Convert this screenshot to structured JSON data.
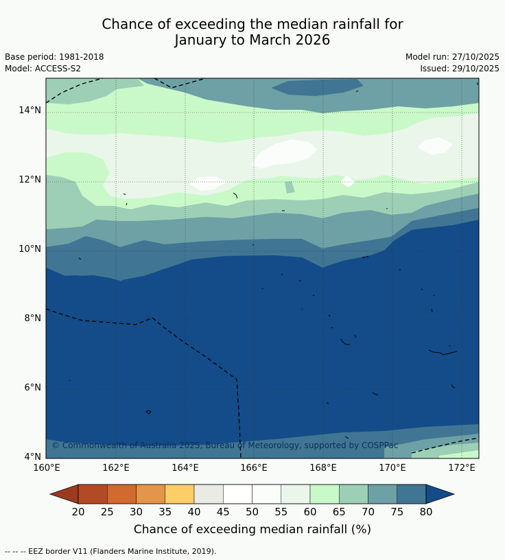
{
  "title": {
    "line1": "Chance of exceeding the median rainfall for",
    "line2": "January to March 2026"
  },
  "meta": {
    "base_period": "Base period: 1981-2018",
    "model": "Model: ACCESS-S2",
    "model_run": "Model run: 27/10/2025",
    "issued": "Issued: 29/10/2025"
  },
  "map": {
    "lat_labels": [
      "14°N",
      "12°N",
      "10°N",
      "8°N",
      "6°N",
      "4°N"
    ],
    "lon_labels": [
      "160°E",
      "162°E",
      "164°E",
      "166°E",
      "168°E",
      "170°E",
      "172°E"
    ],
    "copyright": "© Commonwealth of Australia 2025, Bureau of Meteorology, supported by COSPPac"
  },
  "colorbar": {
    "ticks": [
      "20",
      "25",
      "30",
      "35",
      "40",
      "45",
      "50",
      "55",
      "60",
      "65",
      "70",
      "75",
      "80"
    ],
    "colors": [
      "#b34a26",
      "#d2692f",
      "#e3954a",
      "#fdcd68",
      "#ebebe6",
      "#ffffff",
      "#fbfdfb",
      "#eaf6ea",
      "#caf9c9",
      "#9dcfb6",
      "#6da1a5",
      "#407594"
    ],
    "low_color": "#9c3a20",
    "high_color": "#134c88",
    "label": "Chance of exceeding median rainfall (%)"
  },
  "footnote": "--  --  -- EEZ border V11 (Flanders Marine Institute, 2019)."
}
